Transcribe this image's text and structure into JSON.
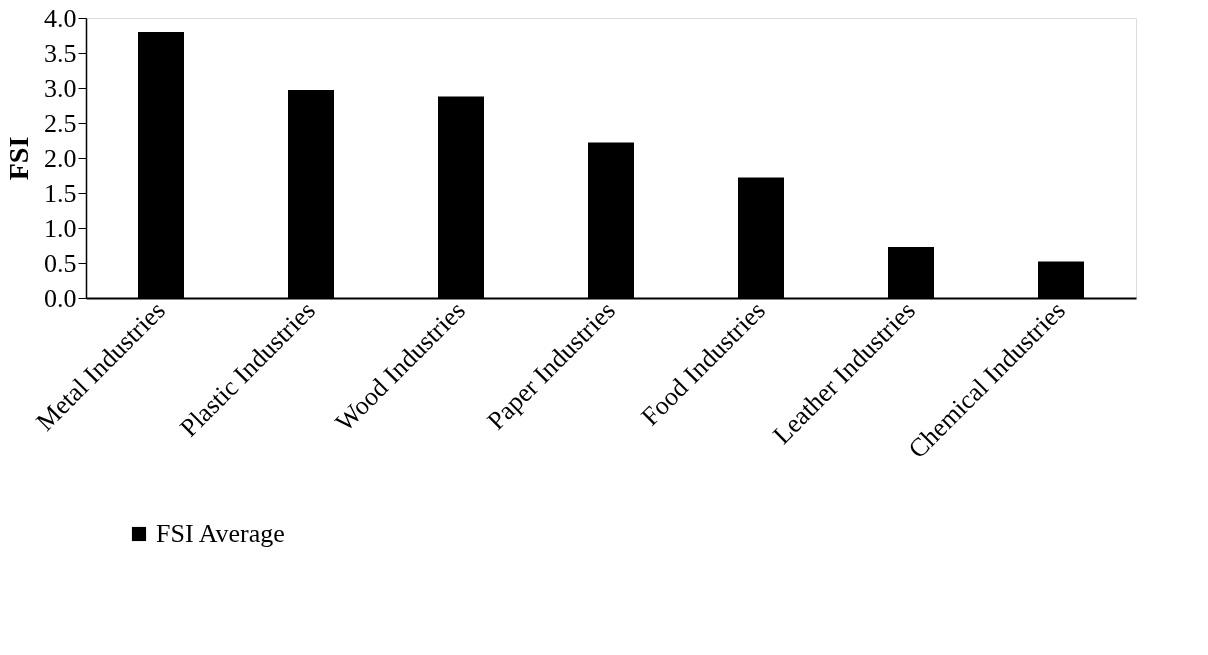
{
  "chart_data": {
    "type": "bar",
    "ylabel": "FSI",
    "categories": [
      "Metal Industries",
      "Plastic Industries",
      "Wood Industries",
      "Paper Industries",
      "Food Industries",
      "Leather Industries",
      "Chemical Industries"
    ],
    "series": [
      {
        "name": "FSI Average",
        "color": "#000000",
        "values": [
          3.8,
          2.97,
          2.88,
          2.22,
          1.72,
          0.73,
          0.52
        ]
      }
    ],
    "ylim": [
      0,
      4
    ],
    "yticks": [
      {
        "value": 0,
        "label": "0.0"
      },
      {
        "value": 0.5,
        "label": "0.5"
      },
      {
        "value": 1,
        "label": "1.0"
      },
      {
        "value": 1.5,
        "label": "1.5"
      },
      {
        "value": 2,
        "label": "2.0"
      },
      {
        "value": 2.5,
        "label": "2.5"
      },
      {
        "value": 3,
        "label": "3.0"
      },
      {
        "value": 3.5,
        "label": "3.5"
      },
      {
        "value": 4,
        "label": "4.0"
      }
    ],
    "grid": false,
    "legend": "bottom"
  }
}
